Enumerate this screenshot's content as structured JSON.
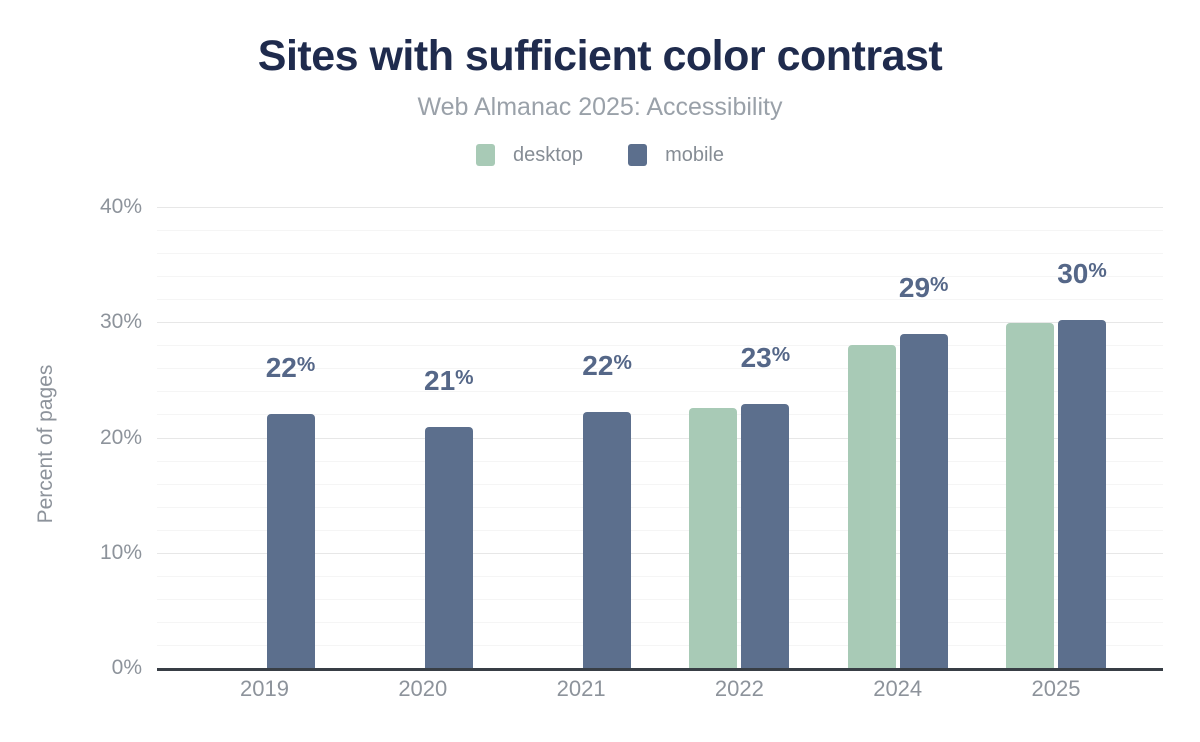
{
  "header": {
    "title": "Sites with sufficient color contrast",
    "subtitle": "Web Almanac 2025: Accessibility"
  },
  "chart_data": {
    "type": "bar",
    "title": "Sites with sufficient color contrast",
    "subtitle": "Web Almanac 2025: Accessibility",
    "categories": [
      "2019",
      "2020",
      "2021",
      "2022",
      "2024",
      "2025"
    ],
    "series": [
      {
        "name": "desktop",
        "color": "#a8cab6",
        "values": [
          null,
          null,
          null,
          22.6,
          28.0,
          29.9
        ]
      },
      {
        "name": "mobile",
        "color": "#5c6f8d",
        "values": [
          22.0,
          20.9,
          22.2,
          22.9,
          29.0,
          30.2
        ]
      }
    ],
    "bar_labels": [
      "22%",
      "21%",
      "22%",
      "23%",
      "29%",
      "30%"
    ],
    "xlabel": "",
    "ylabel": "Percent of pages",
    "ylim": [
      0,
      40
    ],
    "y_ticks": [
      "0%",
      "10%",
      "20%",
      "30%",
      "40%"
    ],
    "y_major_step": 10,
    "y_minor_step": 2,
    "grid": true,
    "legend_position": "top",
    "colors": {
      "title": "#1f2b4d",
      "subtitle": "#9aa1a9",
      "data_label": "#556788",
      "tick_label": "#8d939b",
      "axis_line": "#383e45",
      "gridline_major": "#e7e7e7",
      "gridline_minor": "#f5f5f5",
      "background": "#ffffff"
    }
  }
}
